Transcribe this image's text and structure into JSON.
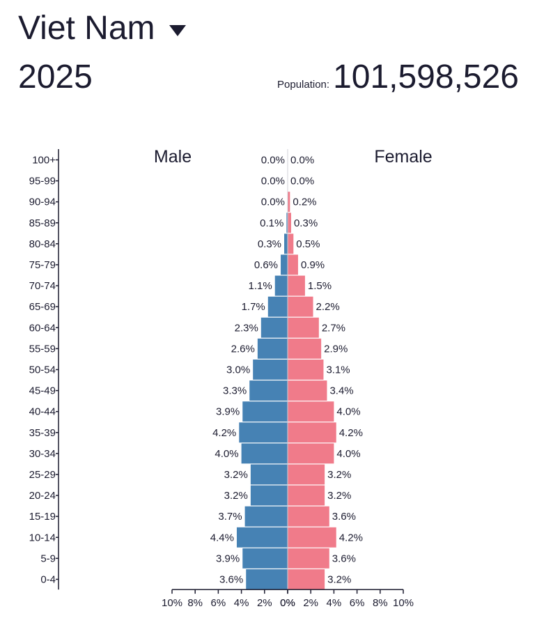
{
  "header": {
    "country": "Viet Nam",
    "year": "2025",
    "population_label": "Population:",
    "population_value": "101,598,526"
  },
  "colors": {
    "male": "#4682b4",
    "female": "#f07b8a",
    "axis": "#1b1b2f"
  },
  "icons": {
    "dropdown": "caret-down-icon"
  },
  "chart_data": {
    "type": "bar",
    "orientation": "horizontal-pyramid",
    "title": "",
    "xlim": [
      -10,
      10
    ],
    "x_ticks": [
      "10%",
      "8%",
      "6%",
      "4%",
      "2%",
      "0%",
      "0%",
      "2%",
      "4%",
      "6%",
      "8%",
      "10%"
    ],
    "categories": [
      "100+",
      "95-99",
      "90-94",
      "85-89",
      "80-84",
      "75-79",
      "70-74",
      "65-69",
      "60-64",
      "55-59",
      "50-54",
      "45-49",
      "40-44",
      "35-39",
      "30-34",
      "25-29",
      "20-24",
      "15-19",
      "10-14",
      "5-9",
      "0-4"
    ],
    "series": [
      {
        "name": "Male",
        "values": [
          0.0,
          0.0,
          0.0,
          0.1,
          0.3,
          0.6,
          1.1,
          1.7,
          2.3,
          2.6,
          3.0,
          3.3,
          3.9,
          4.2,
          4.0,
          3.2,
          3.2,
          3.7,
          4.4,
          3.9,
          3.6
        ],
        "labels": [
          "0.0%",
          "0.0%",
          "0.0%",
          "0.1%",
          "0.3%",
          "0.6%",
          "1.1%",
          "1.7%",
          "2.3%",
          "2.6%",
          "3.0%",
          "3.3%",
          "3.9%",
          "4.2%",
          "4.0%",
          "3.2%",
          "3.2%",
          "3.7%",
          "4.4%",
          "3.9%",
          "3.6%"
        ]
      },
      {
        "name": "Female",
        "values": [
          0.0,
          0.0,
          0.2,
          0.3,
          0.5,
          0.9,
          1.5,
          2.2,
          2.7,
          2.9,
          3.1,
          3.4,
          4.0,
          4.2,
          4.0,
          3.2,
          3.2,
          3.6,
          4.2,
          3.6,
          3.2
        ],
        "labels": [
          "0.0%",
          "0.0%",
          "0.2%",
          "0.3%",
          "0.5%",
          "0.9%",
          "1.5%",
          "2.2%",
          "2.7%",
          "2.9%",
          "3.1%",
          "3.4%",
          "4.0%",
          "4.2%",
          "4.0%",
          "3.2%",
          "3.2%",
          "3.6%",
          "4.2%",
          "3.6%",
          "3.2%"
        ]
      }
    ],
    "grid": false
  }
}
